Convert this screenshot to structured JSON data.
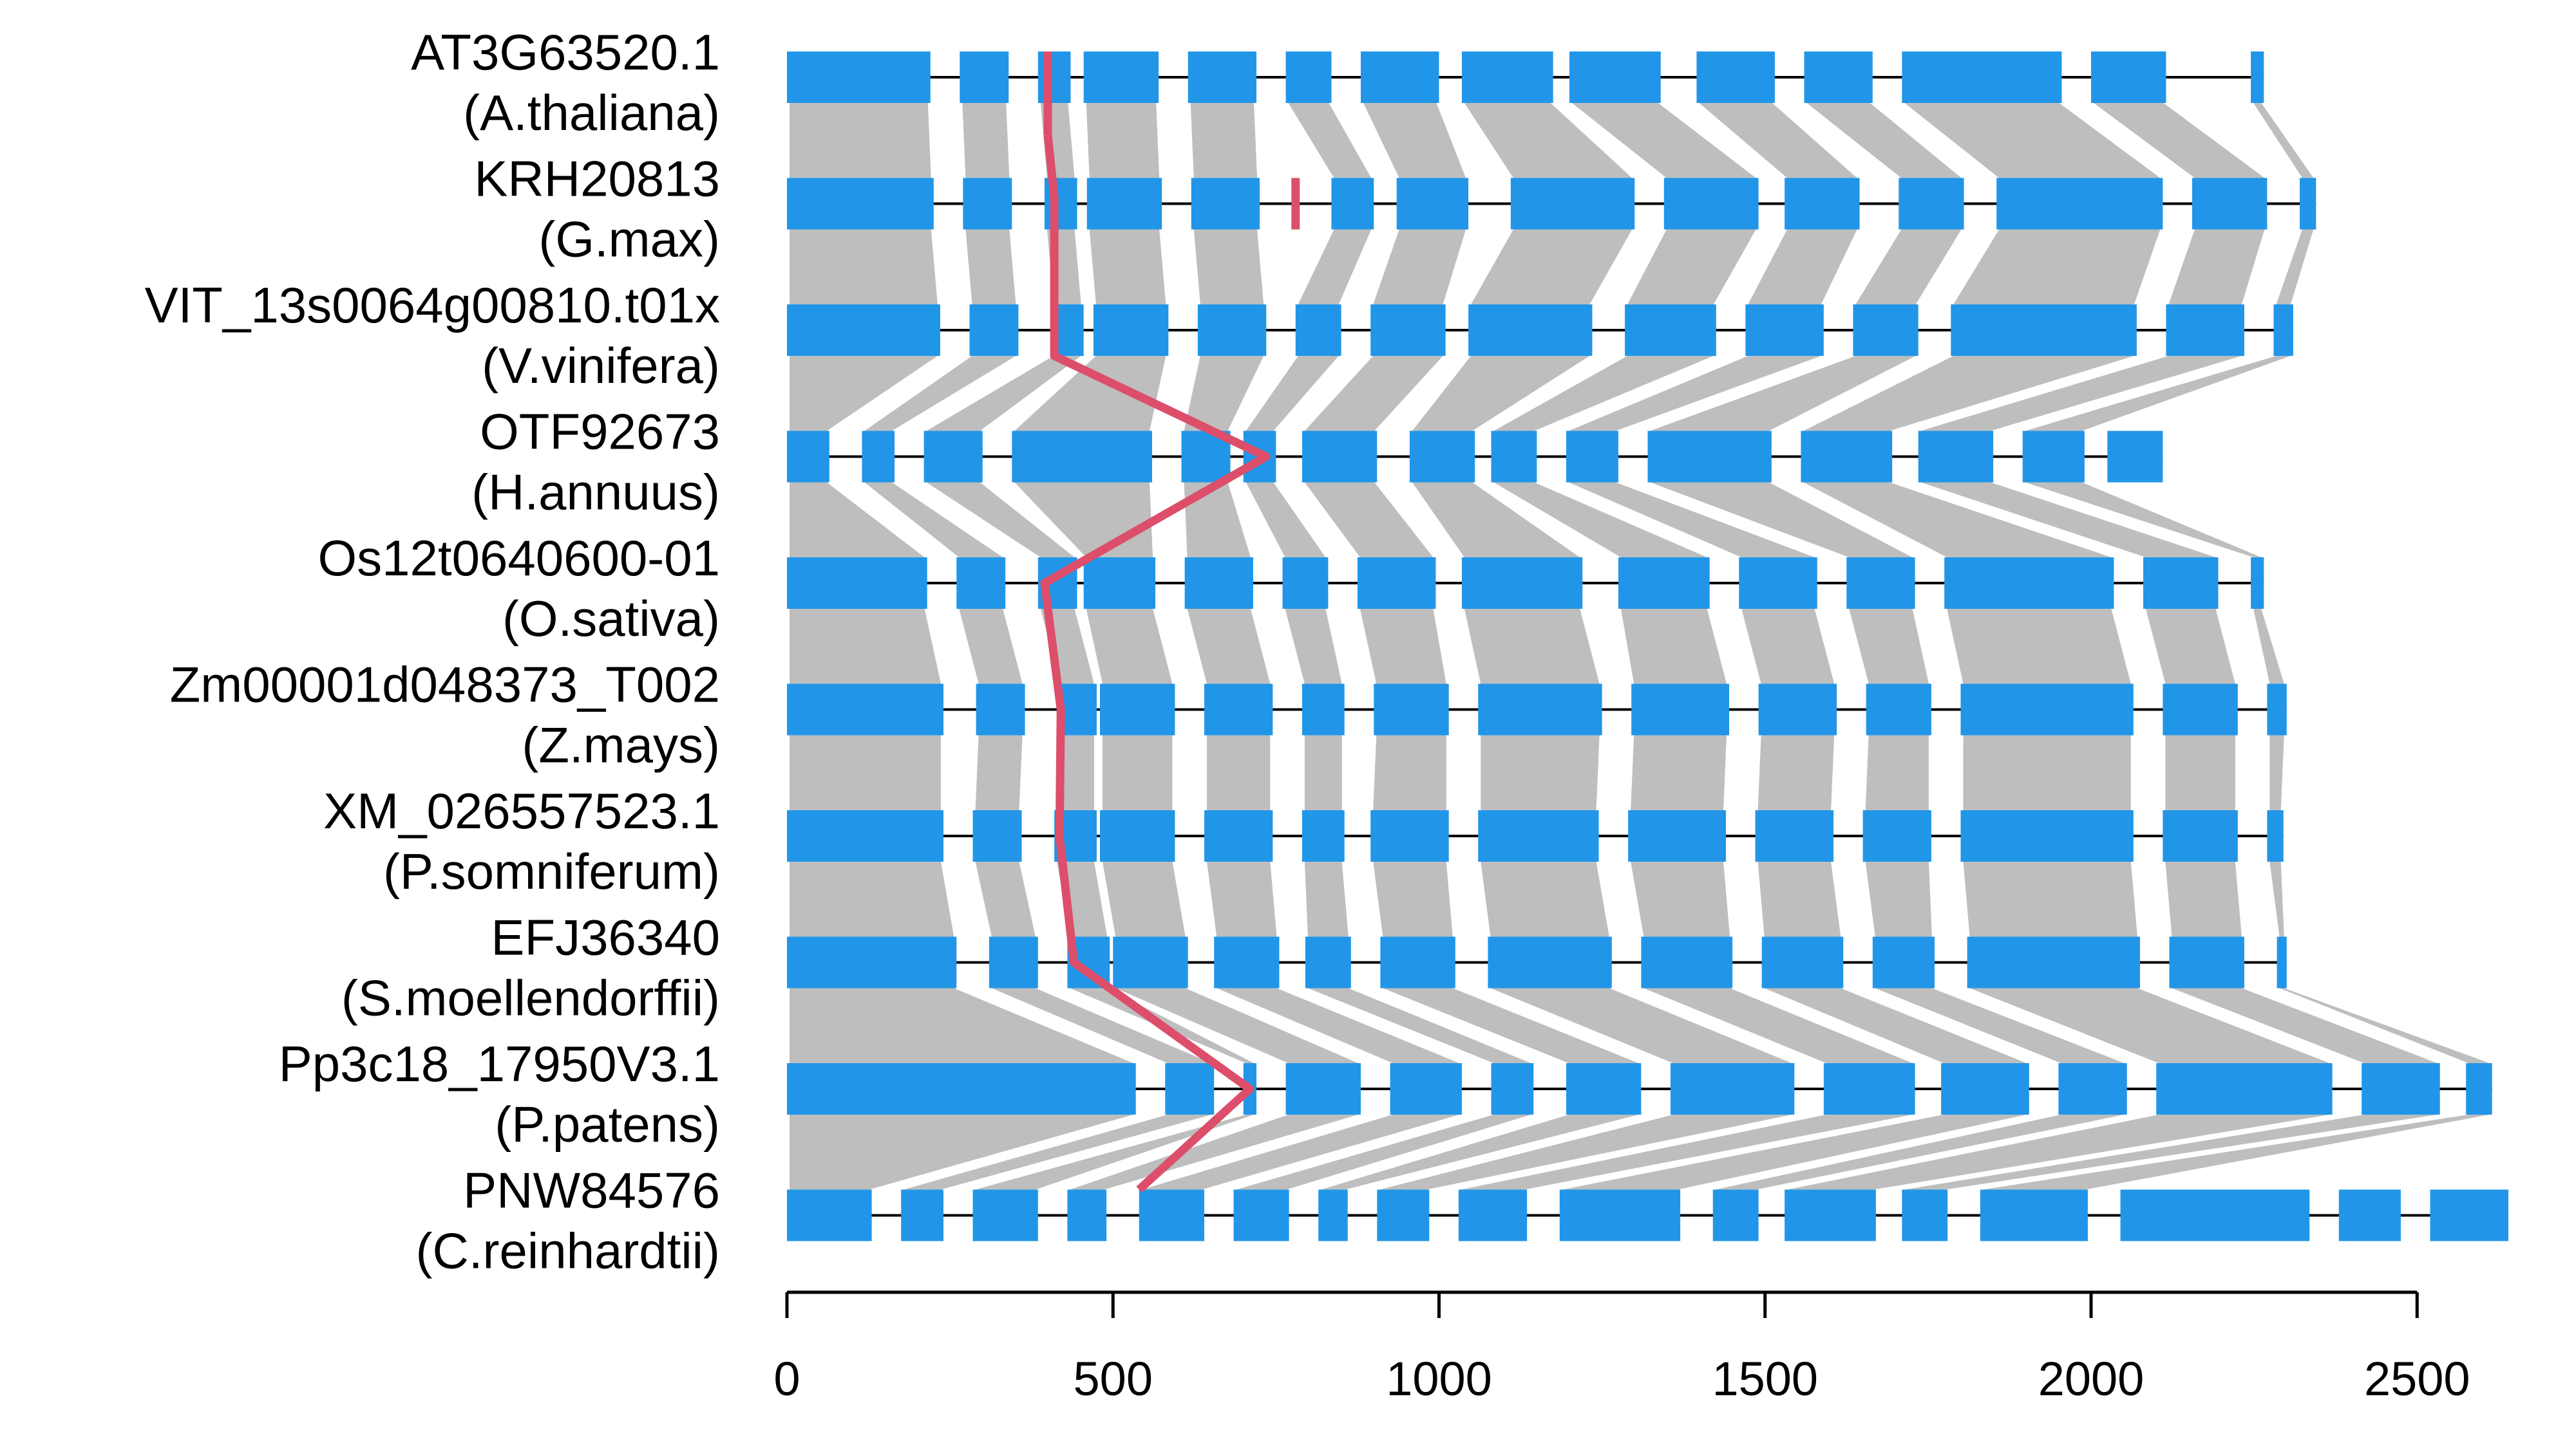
{
  "chart_data": {
    "type": "gene-structure-alignment",
    "xlim": [
      0,
      2650
    ],
    "x_ticks": [
      0,
      500,
      1000,
      1500,
      2000,
      2500
    ],
    "x_tick_labels": [
      "0",
      "500",
      "1000",
      "1500",
      "2000",
      "2500"
    ],
    "colors": {
      "exon": "#2196E8",
      "intron": "#000000",
      "alignment_band": "#BEBEBE",
      "marker": "#DC4E6A"
    },
    "genes": [
      {
        "name": "AT3G63520.1",
        "species": "(A.thaliana)",
        "length": 2265,
        "exons": [
          [
            0,
            220
          ],
          [
            265,
            340
          ],
          [
            385,
            435
          ],
          [
            455,
            570
          ],
          [
            615,
            720
          ],
          [
            765,
            835
          ],
          [
            880,
            1000
          ],
          [
            1035,
            1175
          ],
          [
            1200,
            1340
          ],
          [
            1395,
            1515
          ],
          [
            1560,
            1665
          ],
          [
            1710,
            1955
          ],
          [
            2000,
            2115
          ],
          [
            2245,
            2265
          ]
        ],
        "marker": 400
      },
      {
        "name": "KRH20813",
        "species": "(G.max)",
        "length": 2345,
        "exons": [
          [
            0,
            225
          ],
          [
            270,
            345
          ],
          [
            395,
            445
          ],
          [
            460,
            575
          ],
          [
            620,
            725
          ],
          [
            835,
            900
          ],
          [
            935,
            1045
          ],
          [
            1110,
            1300
          ],
          [
            1345,
            1490
          ],
          [
            1530,
            1645
          ],
          [
            1705,
            1805
          ],
          [
            1855,
            2110
          ],
          [
            2155,
            2270
          ],
          [
            2320,
            2345
          ]
        ],
        "marker": 780
      },
      {
        "name": "VIT_13s0064g00810.t01x",
        "species": "(V.vinifera)",
        "length": 2310,
        "exons": [
          [
            0,
            235
          ],
          [
            280,
            355
          ],
          [
            405,
            455
          ],
          [
            470,
            585
          ],
          [
            630,
            735
          ],
          [
            780,
            850
          ],
          [
            895,
            1010
          ],
          [
            1045,
            1235
          ],
          [
            1285,
            1425
          ],
          [
            1470,
            1590
          ],
          [
            1635,
            1735
          ],
          [
            1785,
            2070
          ],
          [
            2115,
            2235
          ],
          [
            2280,
            2310
          ]
        ],
        "marker": 410
      },
      {
        "name": "OTF92673",
        "species": "(H.annuus)",
        "length": 2110,
        "exons": [
          [
            0,
            65
          ],
          [
            115,
            165
          ],
          [
            210,
            300
          ],
          [
            345,
            560
          ],
          [
            605,
            680
          ],
          [
            700,
            750
          ],
          [
            790,
            905
          ],
          [
            955,
            1055
          ],
          [
            1080,
            1150
          ],
          [
            1195,
            1275
          ],
          [
            1320,
            1510
          ],
          [
            1555,
            1695
          ],
          [
            1735,
            1850
          ],
          [
            1895,
            1990
          ],
          [
            2025,
            2110
          ]
        ],
        "marker": 735
      },
      {
        "name": "Os12t0640600-01",
        "species": "(O.sativa)",
        "length": 2265,
        "exons": [
          [
            0,
            215
          ],
          [
            260,
            335
          ],
          [
            385,
            445
          ],
          [
            455,
            565
          ],
          [
            610,
            715
          ],
          [
            760,
            830
          ],
          [
            875,
            995
          ],
          [
            1035,
            1220
          ],
          [
            1275,
            1415
          ],
          [
            1460,
            1580
          ],
          [
            1625,
            1730
          ],
          [
            1775,
            2035
          ],
          [
            2080,
            2195
          ],
          [
            2245,
            2265
          ]
        ],
        "marker": 395
      },
      {
        "name": "Zm00001d048373_T002",
        "species": "(Z.mays)",
        "length": 2300,
        "exons": [
          [
            0,
            240
          ],
          [
            290,
            365
          ],
          [
            415,
            475
          ],
          [
            480,
            595
          ],
          [
            640,
            745
          ],
          [
            790,
            855
          ],
          [
            900,
            1015
          ],
          [
            1060,
            1250
          ],
          [
            1295,
            1445
          ],
          [
            1490,
            1610
          ],
          [
            1655,
            1755
          ],
          [
            1800,
            2065
          ],
          [
            2110,
            2225
          ],
          [
            2270,
            2300
          ]
        ],
        "marker": 420
      },
      {
        "name": "XM_026557523.1",
        "species": "(P.somniferum)",
        "length": 2295,
        "exons": [
          [
            0,
            240
          ],
          [
            285,
            360
          ],
          [
            410,
            475
          ],
          [
            480,
            595
          ],
          [
            640,
            745
          ],
          [
            790,
            855
          ],
          [
            895,
            1015
          ],
          [
            1060,
            1245
          ],
          [
            1290,
            1440
          ],
          [
            1485,
            1605
          ],
          [
            1650,
            1755
          ],
          [
            1800,
            2065
          ],
          [
            2110,
            2225
          ],
          [
            2270,
            2295
          ]
        ],
        "marker": 418
      },
      {
        "name": "EFJ36340",
        "species": "(S.moellendorffii)",
        "length": 2300,
        "exons": [
          [
            0,
            260
          ],
          [
            310,
            385
          ],
          [
            430,
            495
          ],
          [
            500,
            615
          ],
          [
            655,
            755
          ],
          [
            795,
            865
          ],
          [
            910,
            1025
          ],
          [
            1075,
            1265
          ],
          [
            1310,
            1450
          ],
          [
            1495,
            1620
          ],
          [
            1665,
            1760
          ],
          [
            1810,
            2075
          ],
          [
            2120,
            2235
          ],
          [
            2285,
            2300
          ]
        ],
        "marker": 440
      },
      {
        "name": "Pp3c18_17950V3.1",
        "species": "(P.patens)",
        "length": 2615,
        "exons": [
          [
            0,
            535
          ],
          [
            580,
            655
          ],
          [
            700,
            720
          ],
          [
            765,
            880
          ],
          [
            925,
            1035
          ],
          [
            1080,
            1145
          ],
          [
            1195,
            1310
          ],
          [
            1355,
            1545
          ],
          [
            1590,
            1730
          ],
          [
            1770,
            1905
          ],
          [
            1950,
            2055
          ],
          [
            2100,
            2370
          ],
          [
            2415,
            2535
          ],
          [
            2575,
            2615
          ]
        ],
        "marker": 710
      },
      {
        "name": "PNW84576",
        "species": "(C.reinhardtii)",
        "length": 2640,
        "exons": [
          [
            0,
            130
          ],
          [
            175,
            240
          ],
          [
            285,
            385
          ],
          [
            430,
            490
          ],
          [
            540,
            640
          ],
          [
            685,
            770
          ],
          [
            815,
            860
          ],
          [
            905,
            985
          ],
          [
            1030,
            1135
          ],
          [
            1185,
            1370
          ],
          [
            1420,
            1490
          ],
          [
            1530,
            1670
          ],
          [
            1710,
            1780
          ],
          [
            1830,
            1995
          ],
          [
            2045,
            2335
          ],
          [
            2380,
            2475
          ],
          [
            2520,
            2640
          ]
        ],
        "marker": 540
      }
    ]
  }
}
